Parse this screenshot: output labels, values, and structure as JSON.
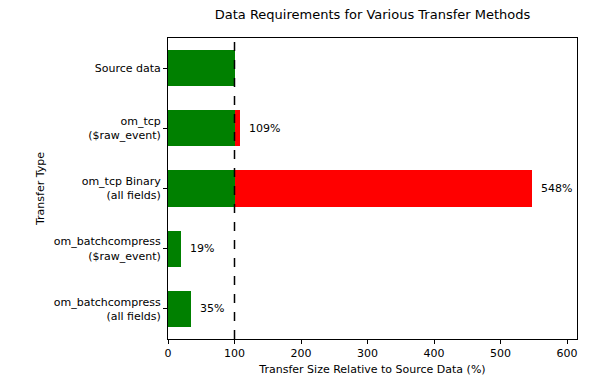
{
  "chart_data": {
    "type": "bar",
    "orientation": "horizontal",
    "stacked": true,
    "title": "Data Requirements for Various Transfer Methods",
    "x_label": "Transfer Size Relative to Source Data (%)",
    "y_label": "Transfer Type",
    "categories": [
      "Source data",
      "om_tcp\n($raw_event)",
      "om_tcp Binary\n(all fields)",
      "om_batchcompress\n($raw_event)",
      "om_batchcompress\n(all fields)"
    ],
    "series": [
      {
        "color": "#008000",
        "values": [
          100,
          100,
          100,
          19,
          35
        ]
      },
      {
        "color": "#ff0000",
        "values": [
          null,
          9,
          448,
          null,
          null
        ]
      }
    ],
    "annotations": [
      {
        "category": "om_tcp\n($raw_event)",
        "x": 109,
        "text": "109%"
      },
      {
        "category": "om_tcp Binary\n(all fields)",
        "x": 548,
        "text": "548%"
      },
      {
        "category": "om_batchcompress\n($raw_event)",
        "x": 19,
        "text": "19%"
      },
      {
        "category": "om_batchcompress\n(all fields)",
        "x": 35,
        "text": "35%"
      }
    ],
    "reference_value": 100,
    "xlim": [
      0,
      615
    ],
    "xticks": [
      0,
      100,
      200,
      300,
      400,
      500,
      600
    ],
    "grid": false
  }
}
